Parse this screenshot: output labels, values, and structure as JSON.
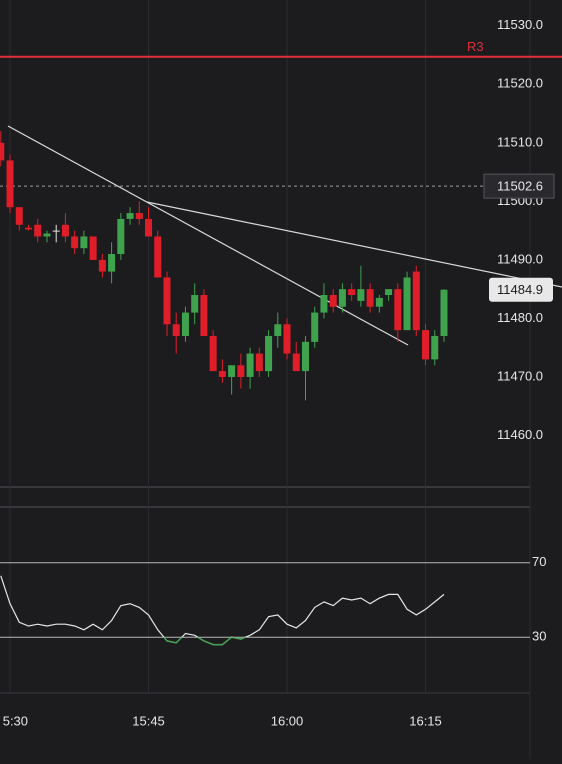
{
  "chart_data": [
    {
      "type": "candlestick",
      "categories": [
        null,
        "5:30",
        null,
        null,
        null,
        null,
        null,
        null,
        null,
        null,
        null,
        null,
        null,
        null,
        null,
        null,
        "15:45",
        null,
        null,
        null,
        null,
        null,
        null,
        null,
        null,
        null,
        null,
        null,
        null,
        null,
        null,
        "16:00",
        null,
        null,
        null,
        null,
        null,
        null,
        null,
        null,
        null,
        null,
        null,
        null,
        null,
        null,
        "16:15",
        null,
        null
      ],
      "open": [
        11510,
        11507,
        11499,
        11495.5,
        11496,
        11494,
        11495,
        11496,
        11494,
        11492,
        11494,
        11490,
        11488,
        11491,
        11497,
        11498,
        11497,
        11494,
        11487,
        11479,
        11477,
        11481,
        11484,
        11477,
        11471,
        11470,
        11472,
        11470,
        11474,
        11471,
        11477,
        11479,
        11474,
        11471,
        11476,
        11481,
        11484,
        11482,
        11485,
        11483,
        11485,
        11482,
        11484,
        11485,
        11478,
        11488,
        11478,
        11473,
        11477
      ],
      "high": [
        11512,
        11508,
        11499,
        11496,
        11497,
        11495,
        11496,
        11498,
        11495,
        11495,
        11494,
        11491,
        11493,
        11498,
        11499,
        11500,
        11499,
        11495,
        11488,
        11481,
        11482,
        11486,
        11485,
        11478,
        11473,
        11472,
        11474,
        11475,
        11475,
        11478,
        11481,
        11480,
        11476,
        11477,
        11482,
        11486,
        11485,
        11486,
        11486,
        11489,
        11486,
        11484,
        11485,
        11486,
        11488,
        11489,
        11479,
        11478,
        11485
      ],
      "low": [
        11506,
        11498,
        11495,
        11495,
        11493,
        11493,
        11493,
        11493,
        11491,
        11491,
        11490,
        11487,
        11486,
        11490,
        11496,
        11496,
        11494,
        11487,
        11477,
        11474,
        11476,
        11479,
        11477,
        11471,
        11469,
        11467,
        11468,
        11468,
        11470,
        11470,
        11475,
        11473,
        11471,
        11466,
        11475,
        11480,
        11481,
        11481,
        11483,
        11482,
        11481,
        11481,
        11483,
        11476,
        11478,
        11477,
        11472,
        11472,
        11476
      ],
      "close": [
        11507,
        11499,
        11496,
        11495.2,
        11494,
        11494.5,
        11495,
        11494,
        11492,
        11494,
        11490,
        11488,
        11491,
        11497,
        11498,
        11497,
        11494,
        11487,
        11479,
        11477,
        11481,
        11484,
        11477,
        11471,
        11470,
        11472,
        11470,
        11474,
        11471,
        11477,
        11479,
        11474,
        11471,
        11476,
        11481,
        11484,
        11482,
        11485,
        11484,
        11485,
        11482,
        11483.5,
        11485,
        11478,
        11487,
        11478,
        11473,
        11477,
        11484.9
      ],
      "up_color": "#3fa34d",
      "down_color": "#e01e2a",
      "doji_color": "#e6e6e6",
      "ylim": [
        11451.2,
        11534.4
      ],
      "yticks": [
        {
          "value": 11530,
          "label": "11530.0"
        },
        {
          "value": 11520,
          "label": "11520.0"
        },
        {
          "value": 11510,
          "label": "11510.0"
        },
        {
          "value": 11500,
          "label": "11500.0"
        },
        {
          "value": 11490,
          "label": "11490.0"
        },
        {
          "value": 11480,
          "label": "11480.0"
        },
        {
          "value": 11470,
          "label": "11470.0"
        },
        {
          "value": 11460,
          "label": "11460.0"
        }
      ],
      "levels": [
        {
          "name": "R3",
          "value": 11524.7,
          "color": "#e0303a"
        }
      ],
      "crosshair_price": 11502.6,
      "last_price": 11484.9
    },
    {
      "type": "line",
      "values": [
        63,
        48,
        38,
        36,
        37,
        36,
        37,
        37,
        36,
        34,
        37,
        34,
        39,
        47,
        48,
        46,
        42,
        34,
        28,
        27,
        32,
        31,
        28,
        26,
        26,
        30,
        29,
        31,
        34,
        41,
        42,
        37,
        35,
        39,
        46,
        49,
        47,
        51,
        50,
        51,
        48,
        51,
        53,
        53,
        45,
        42,
        45,
        49,
        53
      ],
      "color": "#e6e6e6",
      "low_color": "#3fa34d",
      "ylim": [
        0,
        100
      ],
      "yticks": [
        70,
        30
      ]
    }
  ]
}
